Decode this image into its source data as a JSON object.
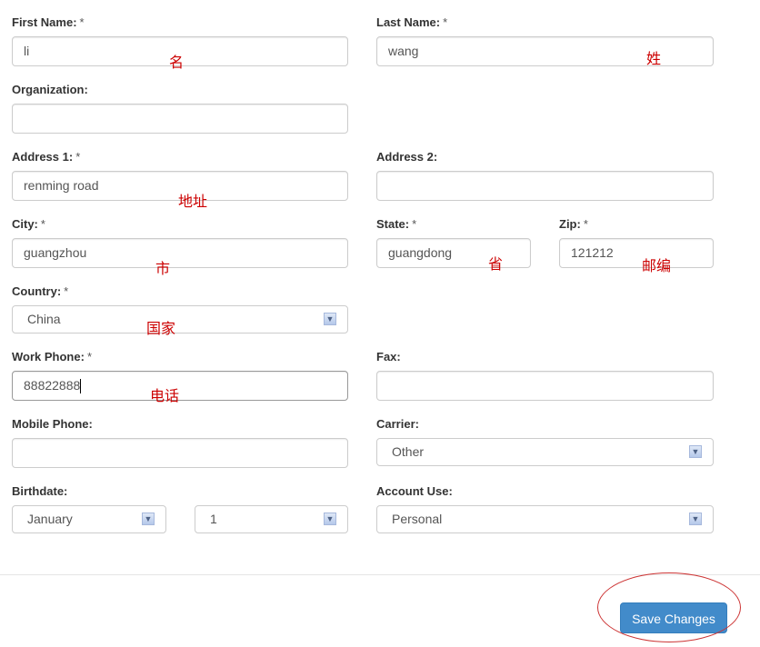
{
  "required_mark": "*",
  "fields": {
    "first_name": {
      "label": "First Name:",
      "value": "li",
      "note": "名"
    },
    "last_name": {
      "label": "Last Name:",
      "value": "wang",
      "note": "姓"
    },
    "organization": {
      "label": "Organization:",
      "value": ""
    },
    "address1": {
      "label": "Address 1:",
      "value": "renming road",
      "note": "地址"
    },
    "address2": {
      "label": "Address 2:",
      "value": ""
    },
    "city": {
      "label": "City:",
      "value": "guangzhou",
      "note": "市"
    },
    "state": {
      "label": "State:",
      "value": "guangdong",
      "note": "省"
    },
    "zip": {
      "label": "Zip:",
      "value": "121212",
      "note": "邮编"
    },
    "country": {
      "label": "Country:",
      "value": "China",
      "note": "国家"
    },
    "work_phone": {
      "label": "Work Phone:",
      "value": "88822888",
      "note": "电话"
    },
    "fax": {
      "label": "Fax:",
      "value": ""
    },
    "mobile_phone": {
      "label": "Mobile Phone:",
      "value": ""
    },
    "carrier": {
      "label": "Carrier:",
      "value": "Other"
    },
    "birthdate": {
      "label": "Birthdate:",
      "month": "January",
      "day": "1"
    },
    "account_use": {
      "label": "Account Use:",
      "value": "Personal"
    }
  },
  "save_label": "Save Changes",
  "colors": {
    "button": "#428bca",
    "annotation": "#cc0000"
  }
}
